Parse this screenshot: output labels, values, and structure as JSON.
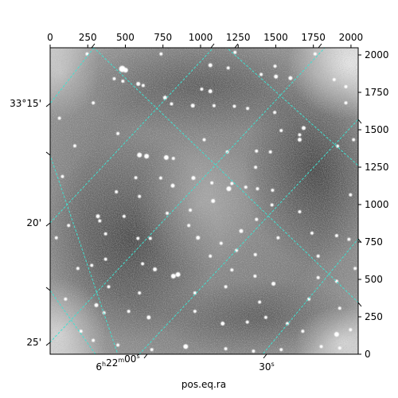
{
  "figure": {
    "xlabel": "pos.eq.ra",
    "pixel_x_ticks": [
      "0",
      "250",
      "500",
      "750",
      "1000",
      "1250",
      "1500",
      "1750",
      "2000"
    ],
    "pixel_y_ticks": [
      "0",
      "250",
      "500",
      "750",
      "1000",
      "1250",
      "1500",
      "1750",
      "2000"
    ],
    "dec_ticks": [
      "33°15'",
      "20'",
      "25'"
    ],
    "ra_ticks": [
      "6h22m00s",
      "30s"
    ],
    "pixel_range": [
      0,
      2048
    ],
    "grid_color": "#40e0d0",
    "image_colormap": "grayscale"
  },
  "stars": [
    [
      0.234,
      0.069,
      4
    ],
    [
      0.245,
      0.073,
      3
    ],
    [
      0.52,
      0.057,
      2.5
    ],
    [
      0.578,
      0.066,
      2
    ],
    [
      0.685,
      0.087,
      2
    ],
    [
      0.733,
      0.094,
      2.5
    ],
    [
      0.78,
      0.099,
      2.5
    ],
    [
      0.922,
      0.104,
      2
    ],
    [
      0.96,
      0.127,
      2
    ],
    [
      0.208,
      0.101,
      2
    ],
    [
      0.236,
      0.109,
      2
    ],
    [
      0.286,
      0.118,
      2.5
    ],
    [
      0.302,
      0.123,
      2
    ],
    [
      0.492,
      0.135,
      2
    ],
    [
      0.52,
      0.142,
      2.5
    ],
    [
      0.373,
      0.163,
      2.5
    ],
    [
      0.394,
      0.183,
      2
    ],
    [
      0.463,
      0.189,
      2.5
    ],
    [
      0.532,
      0.189,
      2
    ],
    [
      0.598,
      0.191,
      2
    ],
    [
      0.641,
      0.198,
      2
    ],
    [
      0.729,
      0.211,
      2
    ],
    [
      0.823,
      0.262,
      2.5
    ],
    [
      0.81,
      0.284,
      2
    ],
    [
      0.81,
      0.3,
      2.5
    ],
    [
      0.933,
      0.321,
      2
    ],
    [
      0.67,
      0.337,
      2
    ],
    [
      0.715,
      0.34,
      2
    ],
    [
      0.29,
      0.35,
      3
    ],
    [
      0.313,
      0.354,
      3
    ],
    [
      0.377,
      0.358,
      3
    ],
    [
      0.4,
      0.361,
      2
    ],
    [
      0.575,
      0.34,
      2
    ],
    [
      0.667,
      0.39,
      2
    ],
    [
      0.278,
      0.424,
      2
    ],
    [
      0.359,
      0.425,
      2
    ],
    [
      0.465,
      0.425,
      2.5
    ],
    [
      0.525,
      0.441,
      2
    ],
    [
      0.59,
      0.443,
      2
    ],
    [
      0.635,
      0.455,
      2
    ],
    [
      0.673,
      0.46,
      2
    ],
    [
      0.722,
      0.465,
      2
    ],
    [
      0.58,
      0.46,
      3
    ],
    [
      0.215,
      0.47,
      2
    ],
    [
      0.29,
      0.485,
      2
    ],
    [
      0.398,
      0.45,
      2.5
    ],
    [
      0.455,
      0.53,
      2
    ],
    [
      0.529,
      0.5,
      2.5
    ],
    [
      0.72,
      0.513,
      2
    ],
    [
      0.81,
      0.535,
      2
    ],
    [
      0.155,
      0.55,
      2.5
    ],
    [
      0.161,
      0.565,
      2
    ],
    [
      0.18,
      0.607,
      2
    ],
    [
      0.285,
      0.622,
      2
    ],
    [
      0.325,
      0.622,
      2
    ],
    [
      0.48,
      0.62,
      2.5
    ],
    [
      0.555,
      0.638,
      2
    ],
    [
      0.605,
      0.661,
      2
    ],
    [
      0.666,
      0.675,
      2
    ],
    [
      0.62,
      0.598,
      2.5
    ],
    [
      0.85,
      0.605,
      2
    ],
    [
      0.93,
      0.613,
      2
    ],
    [
      0.97,
      0.625,
      2
    ],
    [
      0.135,
      0.71,
      2
    ],
    [
      0.18,
      0.69,
      2
    ],
    [
      0.3,
      0.705,
      2
    ],
    [
      0.34,
      0.723,
      2.5
    ],
    [
      0.4,
      0.745,
      3
    ],
    [
      0.415,
      0.74,
      3
    ],
    [
      0.52,
      0.68,
      2
    ],
    [
      0.59,
      0.725,
      2
    ],
    [
      0.665,
      0.745,
      2
    ],
    [
      0.725,
      0.77,
      2.5
    ],
    [
      0.87,
      0.75,
      2
    ],
    [
      0.93,
      0.762,
      2
    ],
    [
      0.09,
      0.72,
      2
    ],
    [
      0.05,
      0.82,
      2
    ],
    [
      0.15,
      0.84,
      2.5
    ],
    [
      0.175,
      0.865,
      2
    ],
    [
      0.255,
      0.86,
      2
    ],
    [
      0.32,
      0.88,
      2.5
    ],
    [
      0.47,
      0.86,
      2
    ],
    [
      0.56,
      0.9,
      2.5
    ],
    [
      0.64,
      0.895,
      2
    ],
    [
      0.7,
      0.88,
      2
    ],
    [
      0.77,
      0.9,
      2
    ],
    [
      0.82,
      0.925,
      2
    ],
    [
      0.93,
      0.935,
      3
    ],
    [
      0.975,
      0.92,
      2
    ],
    [
      0.1,
      0.925,
      2
    ],
    [
      0.14,
      0.955,
      2
    ],
    [
      0.22,
      0.97,
      2
    ],
    [
      0.33,
      0.985,
      2
    ],
    [
      0.44,
      0.975,
      3
    ],
    [
      0.57,
      0.982,
      2
    ],
    [
      0.66,
      0.99,
      2
    ],
    [
      0.75,
      0.985,
      2
    ],
    [
      0.88,
      0.975,
      2
    ],
    [
      0.94,
      0.98,
      2
    ],
    [
      0.03,
      0.23,
      2
    ],
    [
      0.04,
      0.42,
      2
    ],
    [
      0.02,
      0.62,
      2
    ],
    [
      0.96,
      0.18,
      2
    ],
    [
      0.985,
      0.3,
      2
    ],
    [
      0.975,
      0.48,
      2
    ],
    [
      0.99,
      0.72,
      2
    ],
    [
      0.75,
      0.27,
      2
    ],
    [
      0.73,
      0.06,
      2
    ],
    [
      0.12,
      0.02,
      2
    ],
    [
      0.36,
      0.02,
      2
    ],
    [
      0.6,
      0.015,
      2
    ],
    [
      0.86,
      0.02,
      2
    ],
    [
      0.5,
      0.3,
      2
    ],
    [
      0.22,
      0.28,
      2
    ],
    [
      0.14,
      0.18,
      2
    ],
    [
      0.08,
      0.32,
      2
    ],
    [
      0.45,
      0.58,
      2
    ],
    [
      0.38,
      0.54,
      2
    ],
    [
      0.24,
      0.55,
      2
    ],
    [
      0.06,
      0.58,
      2
    ],
    [
      0.67,
      0.56,
      2
    ],
    [
      0.74,
      0.62,
      2
    ],
    [
      0.87,
      0.68,
      2
    ],
    [
      0.57,
      0.78,
      2
    ],
    [
      0.47,
      0.8,
      2
    ],
    [
      0.29,
      0.8,
      2
    ],
    [
      0.19,
      0.78,
      2
    ],
    [
      0.68,
      0.83,
      2
    ],
    [
      0.84,
      0.82,
      2
    ],
    [
      0.94,
      0.85,
      2
    ]
  ]
}
